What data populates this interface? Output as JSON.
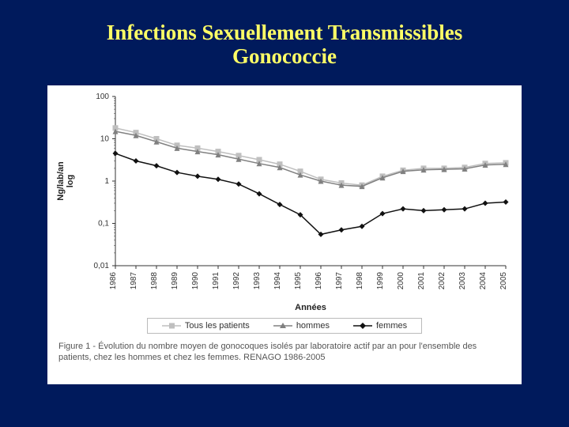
{
  "title_line1": "Infections Sexuellement Transmissibles",
  "title_line2": "Gonococcie",
  "chart": {
    "type": "line",
    "y_axis_label": "Ng/lab/an\nlog",
    "x_axis_label": "Années",
    "y_scale": "log",
    "ylim": [
      0.01,
      100
    ],
    "y_ticks": [
      0.01,
      0.1,
      1,
      10,
      100
    ],
    "y_tick_labels": [
      "0,01",
      "0,1",
      "1",
      "10",
      "100"
    ],
    "years": [
      1986,
      1987,
      1988,
      1989,
      1990,
      1991,
      1992,
      1993,
      1994,
      1995,
      1996,
      1997,
      1998,
      1999,
      2000,
      2001,
      2002,
      2003,
      2004,
      2005
    ],
    "series": [
      {
        "name": "Tous les patients",
        "color": "#bfbfbf",
        "marker": "square",
        "line_width": 1.5,
        "values": [
          18,
          14,
          10,
          7,
          6,
          5,
          4,
          3.2,
          2.5,
          1.7,
          1.1,
          0.9,
          0.8,
          1.3,
          1.8,
          2.0,
          2.0,
          2.1,
          2.6,
          2.7
        ]
      },
      {
        "name": "hommes",
        "color": "#808080",
        "marker": "triangle",
        "line_width": 1.5,
        "values": [
          15,
          12,
          8.5,
          6,
          5,
          4.2,
          3.3,
          2.6,
          2.1,
          1.4,
          1.0,
          0.8,
          0.75,
          1.2,
          1.7,
          1.85,
          1.9,
          1.95,
          2.4,
          2.5
        ]
      },
      {
        "name": "femmes",
        "color": "#111111",
        "marker": "diamond",
        "line_width": 1.5,
        "values": [
          4.5,
          3.0,
          2.3,
          1.6,
          1.3,
          1.1,
          0.85,
          0.5,
          0.28,
          0.16,
          0.055,
          0.07,
          0.085,
          0.17,
          0.22,
          0.2,
          0.21,
          0.22,
          0.3,
          0.32
        ]
      }
    ],
    "background_color": "#ffffff",
    "grid_color": "#cccccc",
    "axis_color": "#333333",
    "tick_font_size": 10,
    "label_font_size": 11
  },
  "legend": {
    "items": [
      {
        "label": "Tous les patients",
        "color": "#bfbfbf",
        "marker": "square"
      },
      {
        "label": "hommes",
        "color": "#808080",
        "marker": "triangle"
      },
      {
        "label": "femmes",
        "color": "#111111",
        "marker": "diamond"
      }
    ]
  },
  "caption": "Figure 1 - Évolution du nombre moyen de gonocoques isolés par laboratoire actif par an pour l'ensemble des patients, chez les hommes et chez les femmes. RENAGO 1986-2005"
}
